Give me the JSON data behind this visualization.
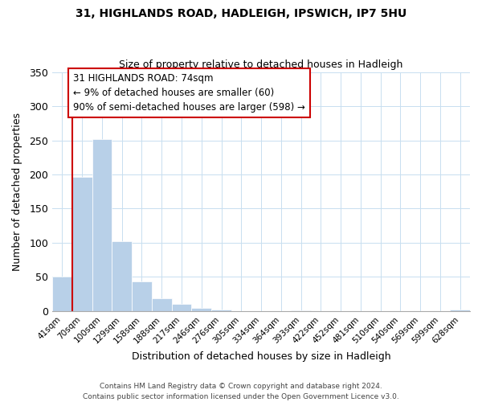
{
  "title": "31, HIGHLANDS ROAD, HADLEIGH, IPSWICH, IP7 5HU",
  "subtitle": "Size of property relative to detached houses in Hadleigh",
  "xlabel": "Distribution of detached houses by size in Hadleigh",
  "ylabel": "Number of detached properties",
  "bar_labels": [
    "41sqm",
    "70sqm",
    "100sqm",
    "129sqm",
    "158sqm",
    "188sqm",
    "217sqm",
    "246sqm",
    "276sqm",
    "305sqm",
    "334sqm",
    "364sqm",
    "393sqm",
    "422sqm",
    "452sqm",
    "481sqm",
    "510sqm",
    "540sqm",
    "569sqm",
    "599sqm",
    "628sqm"
  ],
  "bar_values": [
    50,
    197,
    252,
    102,
    44,
    19,
    10,
    5,
    2,
    0,
    0,
    0,
    1,
    0,
    0,
    0,
    0,
    0,
    0,
    0,
    2
  ],
  "bar_color": "#b8d0e8",
  "highlight_color": "#cc0000",
  "ylim": [
    0,
    350
  ],
  "yticks": [
    0,
    50,
    100,
    150,
    200,
    250,
    300,
    350
  ],
  "annotation_title": "31 HIGHLANDS ROAD: 74sqm",
  "annotation_line1": "← 9% of detached houses are smaller (60)",
  "annotation_line2": "90% of semi-detached houses are larger (598) →",
  "annotation_box_color": "#ffffff",
  "annotation_box_edge": "#cc0000",
  "footer_line1": "Contains HM Land Registry data © Crown copyright and database right 2024.",
  "footer_line2": "Contains public sector information licensed under the Open Government Licence v3.0."
}
